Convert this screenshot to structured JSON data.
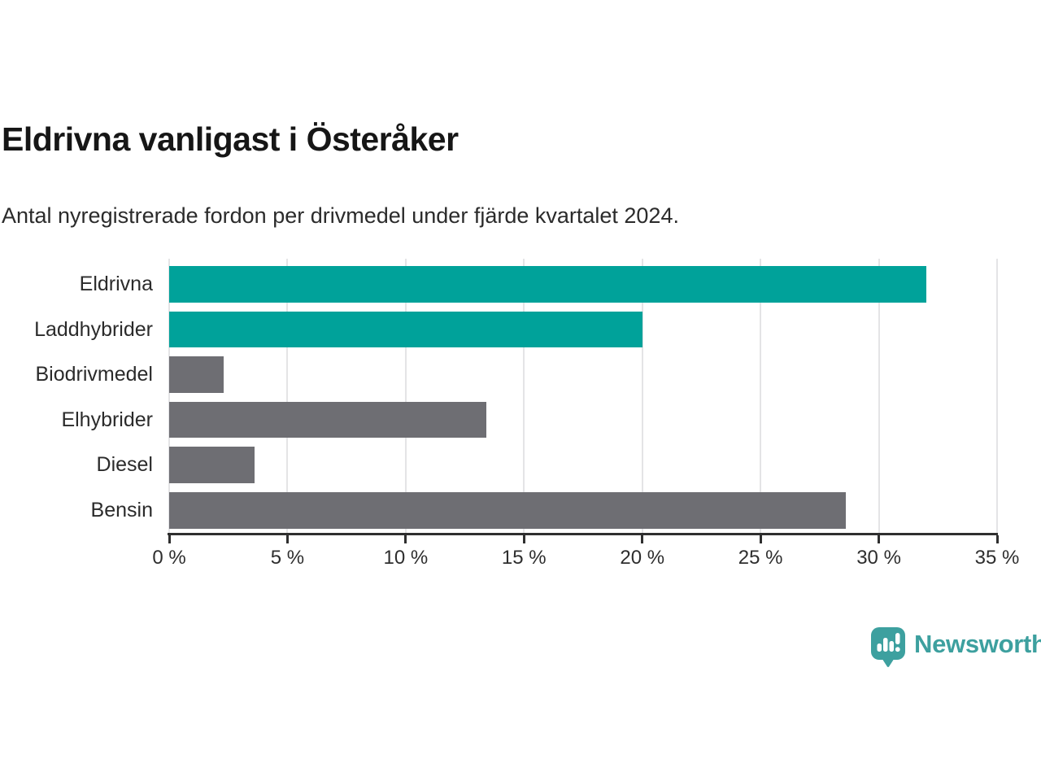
{
  "header": {
    "title": "Eldrivna vanligast i Österåker",
    "subtitle": "Antal nyregistrerade fordon per drivmedel under fjärde kvartalet 2024."
  },
  "chart_data": {
    "type": "bar",
    "orientation": "horizontal",
    "title": "Eldrivna vanligast i Österåker",
    "subtitle": "Antal nyregistrerade fordon per drivmedel under fjärde kvartalet 2024.",
    "categories": [
      "Eldrivna",
      "Laddhybrider",
      "Biodrivmedel",
      "Elhybrider",
      "Diesel",
      "Bensin"
    ],
    "values": [
      32.0,
      20.0,
      2.3,
      13.4,
      3.6,
      28.6
    ],
    "unit": "%",
    "bar_colors": [
      "#00a29a",
      "#00a29a",
      "#6e6e73",
      "#6e6e73",
      "#6e6e73",
      "#6e6e73"
    ],
    "xlabel": "",
    "ylabel": "",
    "xlim": [
      0,
      35
    ],
    "x_tick_values": [
      0,
      5,
      10,
      15,
      20,
      25,
      30,
      35
    ],
    "x_tick_labels": [
      "0 %",
      "5 %",
      "10 %",
      "15 %",
      "20 %",
      "25 %",
      "30 %",
      "35 %"
    ],
    "grid": "vertical",
    "legend": "none"
  },
  "colors": {
    "accent_teal": "#00a29a",
    "bar_gray": "#6e6e73",
    "gridline": "#e4e4e6",
    "axis": "#2f2f2f",
    "logo_teal": "#3da09f"
  },
  "branding": {
    "wordmark": "Newsworthy"
  }
}
